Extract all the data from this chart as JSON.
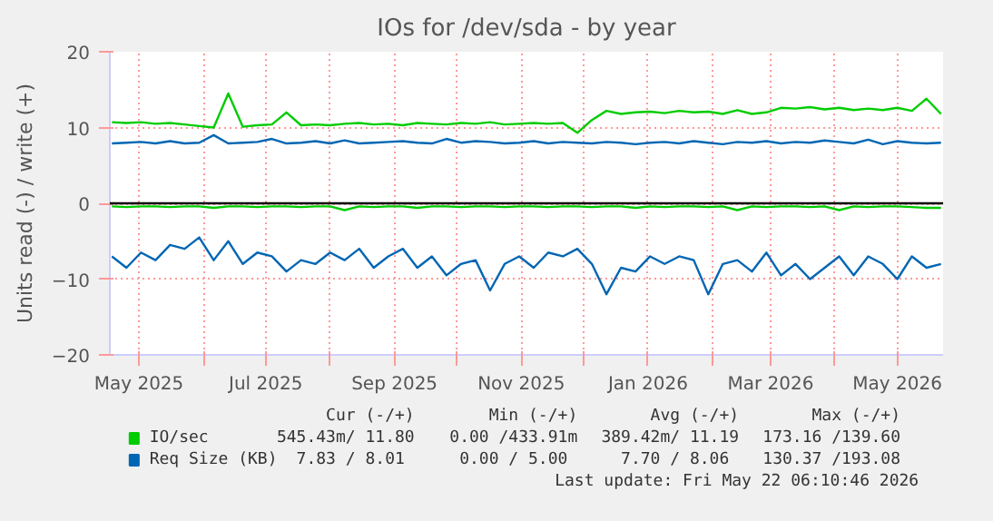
{
  "chart_data": {
    "type": "line",
    "title": "IOs for /dev/sda - by year",
    "ylabel": "Units read (-) / write (+)",
    "x": [
      "2025-04-18",
      "2025-04-25",
      "2025-05-02",
      "2025-05-09",
      "2025-05-16",
      "2025-05-23",
      "2025-05-30",
      "2025-06-06",
      "2025-06-13",
      "2025-06-20",
      "2025-06-27",
      "2025-07-04",
      "2025-07-11",
      "2025-07-18",
      "2025-07-25",
      "2025-08-01",
      "2025-08-08",
      "2025-08-15",
      "2025-08-22",
      "2025-08-29",
      "2025-09-05",
      "2025-09-12",
      "2025-09-19",
      "2025-09-26",
      "2025-10-03",
      "2025-10-10",
      "2025-10-17",
      "2025-10-24",
      "2025-10-31",
      "2025-11-07",
      "2025-11-14",
      "2025-11-21",
      "2025-11-28",
      "2025-12-05",
      "2025-12-12",
      "2025-12-19",
      "2025-12-26",
      "2026-01-02",
      "2026-01-09",
      "2026-01-16",
      "2026-01-23",
      "2026-01-30",
      "2026-02-06",
      "2026-02-13",
      "2026-02-20",
      "2026-02-27",
      "2026-03-06",
      "2026-03-13",
      "2026-03-20",
      "2026-03-27",
      "2026-04-03",
      "2026-04-10",
      "2026-04-17",
      "2026-04-24",
      "2026-05-01",
      "2026-05-08",
      "2026-05-15",
      "2026-05-22"
    ],
    "series": [
      {
        "name": "IO/sec",
        "color": "#00cc00",
        "values": [
          10.7,
          10.6,
          10.7,
          10.5,
          10.6,
          10.4,
          10.2,
          10.0,
          14.5,
          10.1,
          10.3,
          10.4,
          12.0,
          10.3,
          10.4,
          10.3,
          10.5,
          10.6,
          10.4,
          10.5,
          10.3,
          10.6,
          10.5,
          10.4,
          10.6,
          10.5,
          10.7,
          10.4,
          10.5,
          10.6,
          10.5,
          10.6,
          9.3,
          11.0,
          12.2,
          11.8,
          12.0,
          12.1,
          11.9,
          12.2,
          12.0,
          12.1,
          11.8,
          12.3,
          11.8,
          12.0,
          12.6,
          12.5,
          12.7,
          12.4,
          12.6,
          12.3,
          12.5,
          12.3,
          12.6,
          12.2,
          13.8,
          11.8
        ]
      },
      {
        "color": "#00cc00",
        "values": [
          -0.4,
          -0.5,
          -0.4,
          -0.4,
          -0.5,
          -0.4,
          -0.4,
          -0.6,
          -0.4,
          -0.4,
          -0.5,
          -0.4,
          -0.4,
          -0.5,
          -0.4,
          -0.4,
          -0.9,
          -0.4,
          -0.5,
          -0.4,
          -0.4,
          -0.6,
          -0.4,
          -0.4,
          -0.5,
          -0.4,
          -0.4,
          -0.5,
          -0.4,
          -0.4,
          -0.5,
          -0.4,
          -0.4,
          -0.5,
          -0.4,
          -0.4,
          -0.6,
          -0.4,
          -0.5,
          -0.4,
          -0.4,
          -0.5,
          -0.4,
          -0.9,
          -0.4,
          -0.5,
          -0.4,
          -0.4,
          -0.5,
          -0.4,
          -0.9,
          -0.4,
          -0.5,
          -0.4,
          -0.4,
          -0.5,
          -0.6,
          -0.6
        ]
      },
      {
        "name": "Req Size (KB)",
        "color": "#0066b3",
        "values": [
          7.9,
          8.0,
          8.1,
          7.9,
          8.2,
          7.9,
          8.0,
          9.0,
          7.9,
          8.0,
          8.1,
          8.5,
          7.9,
          8.0,
          8.2,
          7.9,
          8.3,
          7.9,
          8.0,
          8.1,
          8.2,
          8.0,
          7.9,
          8.5,
          8.0,
          8.2,
          8.1,
          7.9,
          8.0,
          8.2,
          7.9,
          8.1,
          8.0,
          7.9,
          8.1,
          8.0,
          7.8,
          8.0,
          8.1,
          7.9,
          8.2,
          8.0,
          7.8,
          8.1,
          8.0,
          8.2,
          7.9,
          8.1,
          8.0,
          8.3,
          8.1,
          7.9,
          8.4,
          7.8,
          8.2,
          8.0,
          7.9,
          8.0
        ]
      },
      {
        "color": "#0066b3",
        "values": [
          -7.0,
          -8.5,
          -6.5,
          -7.5,
          -5.5,
          -6.0,
          -4.5,
          -7.5,
          -5.0,
          -8.0,
          -6.5,
          -7.0,
          -9.0,
          -7.5,
          -8.0,
          -6.5,
          -7.5,
          -6.0,
          -8.5,
          -7.0,
          -6.0,
          -8.5,
          -7.0,
          -9.5,
          -8.0,
          -7.5,
          -11.5,
          -8.0,
          -7.0,
          -8.5,
          -6.5,
          -7.0,
          -6.0,
          -8.0,
          -12.0,
          -8.5,
          -9.0,
          -7.0,
          -8.0,
          -7.0,
          -7.5,
          -12.0,
          -8.0,
          -7.5,
          -9.0,
          -6.5,
          -9.5,
          -8.0,
          -10.0,
          -8.5,
          -7.0,
          -9.5,
          -7.0,
          -8.0,
          -10.0,
          -7.0,
          -8.5,
          -8.0
        ]
      }
    ],
    "xlim": [
      "2025-04-17",
      "2026-05-23"
    ],
    "xticks": [
      {
        "value": "2025-05-01",
        "label": "May 2025"
      },
      {
        "value": "2025-06-01",
        "label": null
      },
      {
        "value": "2025-07-01",
        "label": "Jul 2025"
      },
      {
        "value": "2025-08-01",
        "label": null
      },
      {
        "value": "2025-09-01",
        "label": "Sep 2025"
      },
      {
        "value": "2025-10-01",
        "label": null
      },
      {
        "value": "2025-11-01",
        "label": "Nov 2025"
      },
      {
        "value": "2025-12-01",
        "label": null
      },
      {
        "value": "2026-01-01",
        "label": "Jan 2026"
      },
      {
        "value": "2026-02-01",
        "label": null
      },
      {
        "value": "2026-03-01",
        "label": "Mar 2026"
      },
      {
        "value": "2026-04-01",
        "label": null
      },
      {
        "value": "2026-05-01",
        "label": "May 2026"
      }
    ],
    "ylim": [
      -20,
      20
    ],
    "yticks": [
      -20,
      -10,
      0,
      10,
      20
    ],
    "ref_lines": [
      {
        "axis": "y",
        "value": 0,
        "color": "#000000"
      }
    ],
    "grid": true,
    "legend": "bottom",
    "line_style": "solid",
    "marker": "none",
    "annotations": [
      "Cur (-/+)",
      "Min (-/+)",
      "Avg (-/+)",
      "Max (-/+)",
      "545.43m/ 11.80",
      "0.00 /433.91m",
      "389.42m/ 11.19",
      "173.16 /139.60",
      "7.83 /  8.01",
      "0.00 /  5.00",
      "7.70 /  8.06",
      "130.37 /193.08",
      "Last update: Fri May 22 06:10:46 2026"
    ]
  }
}
